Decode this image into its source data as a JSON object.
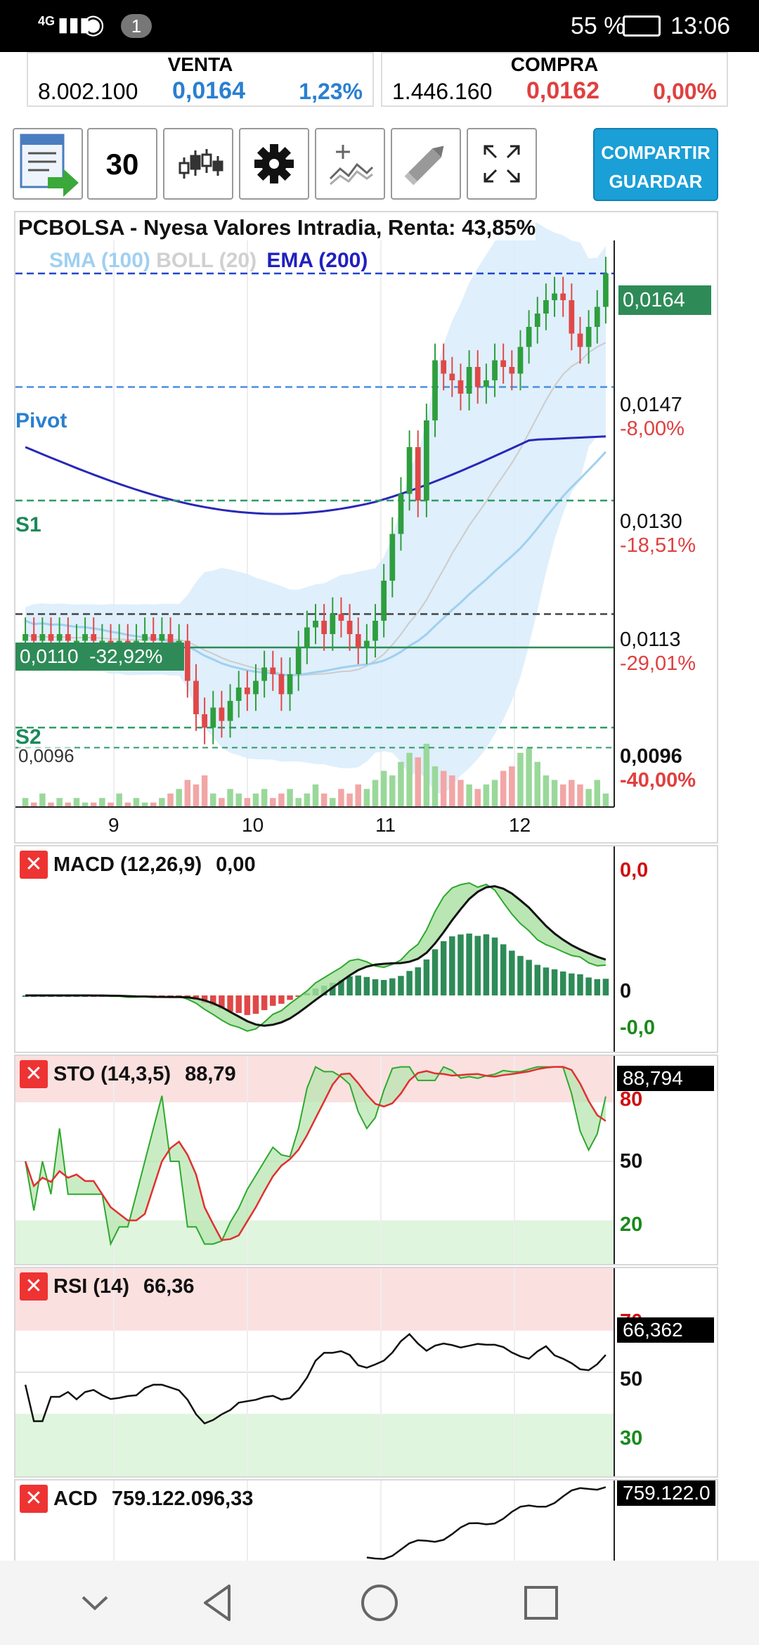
{
  "status_bar": {
    "network": "4G",
    "notification_count": "1",
    "battery": "55 %",
    "time": "13:06"
  },
  "quote": {
    "sell_label": "VENTA",
    "sell_volume": "8.002.100",
    "sell_price": "0,0164",
    "sell_pct": "1,23%",
    "buy_label": "COMPRA",
    "buy_volume": "1.446.160",
    "buy_price": "0,0162",
    "buy_pct": "0,00%"
  },
  "toolbar": {
    "period": "30",
    "share_label_1": "COMPARTIR",
    "share_label_2": "GUARDAR"
  },
  "main_chart": {
    "title": "PCBOLSA - Nyesa Valores Intradia, Renta: 43,85%",
    "legend": [
      {
        "label": "SMA (100)",
        "color": "#9fd0f0"
      },
      {
        "label": "BOLL (20)",
        "color": "#d0d0d0"
      },
      {
        "label": "EMA (200)",
        "color": "#2020c0"
      }
    ],
    "levels": [
      {
        "price": "0,0164",
        "name": "",
        "pct": ""
      },
      {
        "price": "0,0147",
        "name": "Pivot",
        "pct": "-8,00%"
      },
      {
        "price": "0,0130",
        "name": "S1",
        "pct": "-18,51%"
      },
      {
        "price": "0,0113",
        "name": "",
        "pct": "-29,01%"
      },
      {
        "price": "0,0096",
        "name": "S2",
        "pct": "-40,00%"
      }
    ],
    "current_price": "0,0164",
    "cursor_label": "0,0110  -32,92%",
    "low_label": "0,0096",
    "x_ticks": [
      "9",
      "10",
      "11",
      "12"
    ]
  },
  "macd": {
    "name": "MACD (12,26,9)",
    "value": "0,00",
    "axis": [
      "0,0",
      "0",
      "-0,0"
    ]
  },
  "sto": {
    "name": "STO (14,3,5)",
    "value": "88,79",
    "tag": "88,794",
    "axis": [
      "80",
      "50",
      "20"
    ]
  },
  "rsi": {
    "name": "RSI (14)",
    "value": "66,36",
    "tag": "66,362",
    "axis": [
      "70",
      "50",
      "30"
    ]
  },
  "acd": {
    "name": "ACD",
    "value": "759.122.096,33",
    "tag": "759.122.0"
  },
  "chart_data": {
    "type": "candlestick",
    "title": "PCBOLSA - Nyesa Valores Intradia, Renta: 43,85%",
    "x_ticks": [
      "9",
      "10",
      "11",
      "12"
    ],
    "close": [
      0.011,
      0.0109,
      0.011,
      0.0109,
      0.011,
      0.0109,
      0.0109,
      0.011,
      0.0109,
      0.0109,
      0.0108,
      0.0109,
      0.0108,
      0.0109,
      0.011,
      0.0109,
      0.011,
      0.0108,
      0.0109,
      0.0103,
      0.0098,
      0.0096,
      0.0099,
      0.0097,
      0.01,
      0.0102,
      0.0101,
      0.0103,
      0.0105,
      0.0104,
      0.0101,
      0.0104,
      0.0108,
      0.0111,
      0.0112,
      0.011,
      0.0113,
      0.0112,
      0.011,
      0.0108,
      0.0109,
      0.0112,
      0.0118,
      0.0125,
      0.0131,
      0.0138,
      0.013,
      0.0142,
      0.0151,
      0.0149,
      0.0148,
      0.0146,
      0.015,
      0.0147,
      0.0148,
      0.0151,
      0.015,
      0.0149,
      0.0153,
      0.0156,
      0.0158,
      0.016,
      0.0161,
      0.016,
      0.0155,
      0.0153,
      0.0156,
      0.0159,
      0.0164
    ],
    "volume": [
      2,
      1,
      3,
      1,
      2,
      1,
      2,
      1,
      1,
      2,
      1,
      3,
      1,
      2,
      1,
      1,
      2,
      3,
      4,
      6,
      5,
      7,
      3,
      2,
      4,
      3,
      2,
      3,
      4,
      2,
      3,
      4,
      2,
      3,
      5,
      3,
      2,
      4,
      3,
      5,
      4,
      6,
      8,
      7,
      10,
      12,
      11,
      14,
      9,
      8,
      7,
      6,
      5,
      4,
      5,
      6,
      8,
      9,
      12,
      13,
      10,
      7,
      6,
      5,
      6,
      5,
      4,
      6,
      3
    ],
    "macd": {
      "axis_labels": [
        "0,0",
        "0",
        "-0,0"
      ]
    },
    "sto": {
      "value": 88.79,
      "levels": [
        80,
        50,
        20
      ]
    },
    "rsi": {
      "value": 66.36,
      "levels": [
        70,
        50,
        30
      ]
    },
    "acd": {
      "value": "759.122.096,33"
    }
  }
}
